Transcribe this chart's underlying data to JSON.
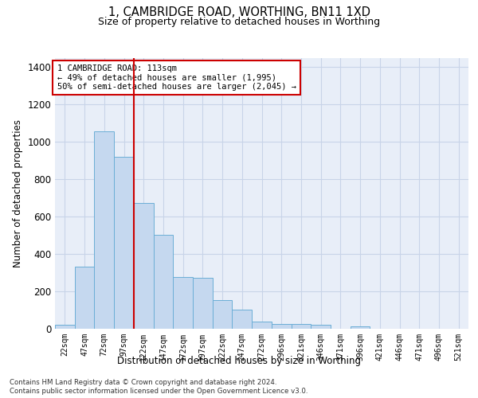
{
  "title": "1, CAMBRIDGE ROAD, WORTHING, BN11 1XD",
  "subtitle": "Size of property relative to detached houses in Worthing",
  "xlabel": "Distribution of detached houses by size in Worthing",
  "ylabel": "Number of detached properties",
  "footer_line1": "Contains HM Land Registry data © Crown copyright and database right 2024.",
  "footer_line2": "Contains public sector information licensed under the Open Government Licence v3.0.",
  "bar_labels": [
    "22sqm",
    "47sqm",
    "72sqm",
    "97sqm",
    "122sqm",
    "147sqm",
    "172sqm",
    "197sqm",
    "222sqm",
    "247sqm",
    "272sqm",
    "296sqm",
    "321sqm",
    "346sqm",
    "371sqm",
    "396sqm",
    "421sqm",
    "446sqm",
    "471sqm",
    "496sqm",
    "521sqm"
  ],
  "bar_values": [
    20,
    330,
    1055,
    920,
    670,
    500,
    275,
    270,
    152,
    102,
    38,
    22,
    22,
    18,
    0,
    12,
    0,
    0,
    0,
    0,
    0
  ],
  "bar_color": "#c5d8ef",
  "bar_edgecolor": "#6baed6",
  "annotation_text": "1 CAMBRIDGE ROAD: 113sqm\n← 49% of detached houses are smaller (1,995)\n50% of semi-detached houses are larger (2,045) →",
  "annotation_box_color": "#cc0000",
  "red_line_bin": 4,
  "ylim": [
    0,
    1450
  ],
  "yticks": [
    0,
    200,
    400,
    600,
    800,
    1000,
    1200,
    1400
  ],
  "grid_color": "#c8d4e8",
  "background_color": "#e8eef8"
}
